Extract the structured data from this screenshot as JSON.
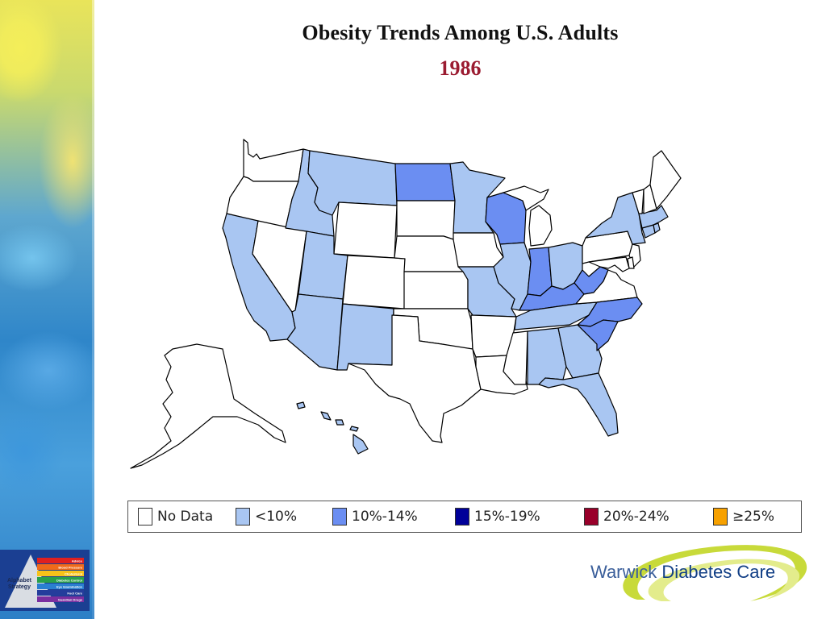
{
  "slide": {
    "title": "Obesity Trends Among U.S. Adults",
    "year": "1986"
  },
  "legend": {
    "items": [
      {
        "label": "No Data",
        "color": "#ffffff"
      },
      {
        "label": "<10%",
        "color": "#a9c6f2"
      },
      {
        "label": "10%-14%",
        "color": "#6b8ef2"
      },
      {
        "label": "15%-19%",
        "color": "#000099"
      },
      {
        "label": "20%-24%",
        "color": "#99002a"
      },
      {
        "label": "≥25%",
        "color": "#f7a100"
      }
    ]
  },
  "map_data": {
    "category_colors": {
      "no_data": "#ffffff",
      "lt10": "#a9c6f2",
      "10_14": "#6b8ef2"
    },
    "states": {
      "WA": "no_data",
      "OR": "no_data",
      "CA": "lt10",
      "NV": "no_data",
      "ID": "lt10",
      "MT": "lt10",
      "WY": "no_data",
      "UT": "lt10",
      "AZ": "lt10",
      "CO": "no_data",
      "NM": "lt10",
      "ND": "10_14",
      "SD": "no_data",
      "NE": "no_data",
      "KS": "no_data",
      "OK": "no_data",
      "TX": "no_data",
      "MN": "lt10",
      "IA": "no_data",
      "MO": "lt10",
      "AR": "no_data",
      "LA": "no_data",
      "WI": "10_14",
      "IL": "lt10",
      "MS": "no_data",
      "MI": "no_data",
      "IN": "10_14",
      "KY": "10_14",
      "TN": "lt10",
      "AL": "lt10",
      "OH": "lt10",
      "WV": "10_14",
      "VA": "no_data",
      "NC": "10_14",
      "SC": "10_14",
      "GA": "lt10",
      "FL": "lt10",
      "PA": "no_data",
      "NY": "lt10",
      "NJ": "no_data",
      "DE": "no_data",
      "MD": "no_data",
      "CT": "lt10",
      "RI": "lt10",
      "MA": "lt10",
      "VT": "no_data",
      "NH": "no_data",
      "ME": "no_data",
      "AK": "no_data",
      "HI": "lt10"
    }
  },
  "logos": {
    "alphabet_line1": "Alphabet",
    "alphabet_line2": "Strategy",
    "alphabet_bands": [
      {
        "label": "Advice",
        "color": "#e02020"
      },
      {
        "label": "Blood Pressure",
        "color": "#f06a1a"
      },
      {
        "label": "Cholesterol",
        "color": "#f7c21a"
      },
      {
        "label": "Diabetes Control",
        "color": "#29a04a"
      },
      {
        "label": "Eye Examination",
        "color": "#2a7fd0"
      },
      {
        "label": "Foot Care",
        "color": "#243d9c"
      },
      {
        "label": "Guardian Drugs",
        "color": "#7a2fa0"
      }
    ],
    "warwick_word1": "Warwick",
    "warwick_word2": "Diabetes Care"
  }
}
